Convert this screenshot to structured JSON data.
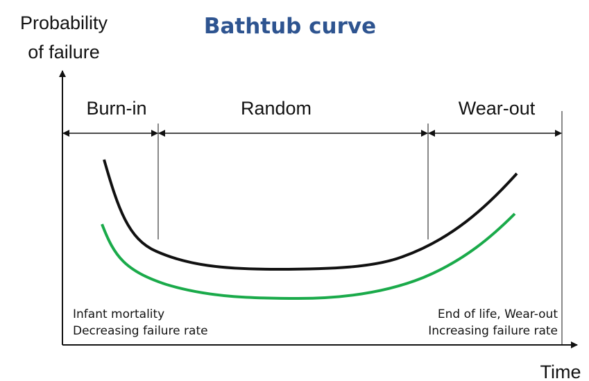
{
  "title": "Bathtub curve",
  "y_axis_label": [
    "Probability",
    "of failure"
  ],
  "x_axis_label": "Time",
  "regions": [
    "Burn-in",
    "Random",
    "Wear-out"
  ],
  "left_note": [
    "Infant mortality",
    "Decreasing failure rate"
  ],
  "right_note": [
    "End of life, Wear-out",
    "Increasing failure rate"
  ]
}
